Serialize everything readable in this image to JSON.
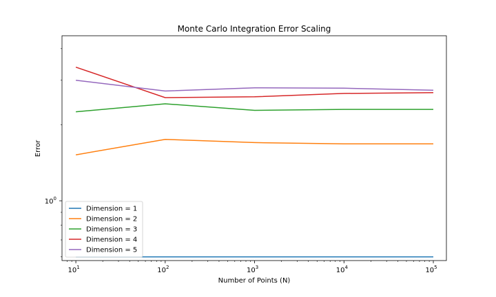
{
  "chart_data": {
    "type": "line",
    "title": "Monte Carlo Integration Error Scaling",
    "xlabel": "Number of Points (N)",
    "ylabel": "Error",
    "x_scale": "log",
    "y_scale": "log",
    "xlim": [
      7,
      140000
    ],
    "ylim": [
      0.58,
      4.5
    ],
    "grid": false,
    "legend_position": "lower-left",
    "x": [
      10,
      100,
      1000,
      10000,
      100000
    ],
    "x_ticks": [
      {
        "value": 10,
        "base": "10",
        "exp": "1"
      },
      {
        "value": 100,
        "base": "10",
        "exp": "2"
      },
      {
        "value": 1000,
        "base": "10",
        "exp": "3"
      },
      {
        "value": 10000,
        "base": "10",
        "exp": "4"
      },
      {
        "value": 100000,
        "base": "10",
        "exp": "5"
      }
    ],
    "y_ticks": [
      {
        "value": 1,
        "base": "10",
        "exp": "0"
      }
    ],
    "series": [
      {
        "name": "Dimension = 1",
        "color": "#1f77b4",
        "values": [
          0.6,
          0.6,
          0.6,
          0.6,
          0.6
        ]
      },
      {
        "name": "Dimension = 2",
        "color": "#ff7f0e",
        "values": [
          1.52,
          1.75,
          1.7,
          1.68,
          1.68
        ]
      },
      {
        "name": "Dimension = 3",
        "color": "#2ca02c",
        "values": [
          2.25,
          2.42,
          2.28,
          2.3,
          2.3
        ]
      },
      {
        "name": "Dimension = 4",
        "color": "#d62728",
        "values": [
          3.38,
          2.56,
          2.58,
          2.66,
          2.68
        ]
      },
      {
        "name": "Dimension = 5",
        "color": "#9467bd",
        "values": [
          3.0,
          2.72,
          2.8,
          2.79,
          2.74
        ]
      }
    ]
  }
}
